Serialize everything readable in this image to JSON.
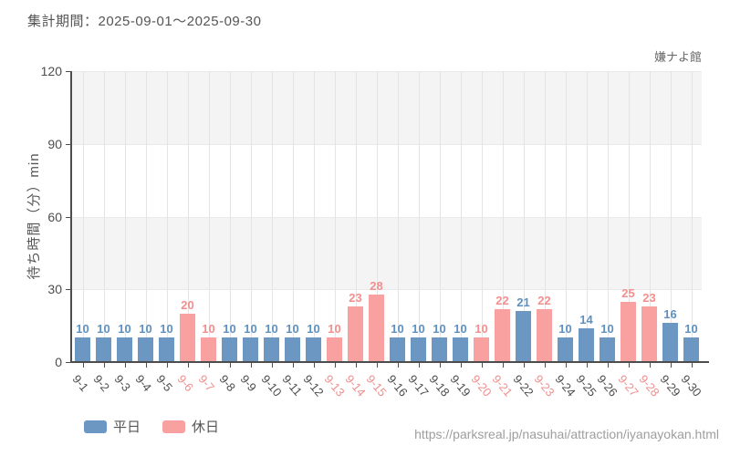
{
  "header": {
    "title": "集計期間：2025-09-01～2025-09-30"
  },
  "chart": {
    "venue_label": "嫌ナよ館"
  },
  "footer": {
    "url": "https://parksreal.jp/nasuhai/attraction/iyanayokan.html"
  },
  "colors": {
    "weekday_bar": "#6b97c2",
    "holiday_bar": "#f9a0a0",
    "weekday_value_label": "#5e90c0",
    "holiday_value_label": "#f48f8f",
    "weekday_axis_label": "#4d4d4d",
    "holiday_axis_label": "#f08e8e",
    "axis_line": "#4d4d4d",
    "band_fill": "#f4f4f4",
    "grid_line": "#e4e4e4",
    "hgrid_line": "#e9e9e9"
  },
  "legend": {
    "items": [
      {
        "key": "weekday",
        "label": "平日"
      },
      {
        "key": "holiday",
        "label": "休日"
      }
    ]
  },
  "chart_data": {
    "type": "bar",
    "title": "集計期間：2025-09-01～2025-09-30",
    "annotation_top_right": "嫌ナよ館",
    "xlabel": "",
    "ylabel": "待ち時間（分）min",
    "ylim": [
      0,
      120
    ],
    "yticks": [
      0,
      30,
      60,
      90,
      120
    ],
    "grid": "alternating horizontal bands + vertical lines at category centers",
    "legend_position": "bottom-left",
    "categories": [
      "9-1",
      "9-2",
      "9-3",
      "9-4",
      "9-5",
      "9-6",
      "9-7",
      "9-8",
      "9-9",
      "9-10",
      "9-11",
      "9-12",
      "9-13",
      "9-14",
      "9-15",
      "9-16",
      "9-17",
      "9-18",
      "9-19",
      "9-20",
      "9-21",
      "9-22",
      "9-23",
      "9-24",
      "9-25",
      "9-26",
      "9-27",
      "9-28",
      "9-29",
      "9-30"
    ],
    "values": [
      10,
      10,
      10,
      10,
      10,
      20,
      10,
      10,
      10,
      10,
      10,
      10,
      10,
      23,
      28,
      10,
      10,
      10,
      10,
      10,
      22,
      21,
      22,
      10,
      14,
      10,
      25,
      23,
      16,
      10
    ],
    "day_type": [
      "weekday",
      "weekday",
      "weekday",
      "weekday",
      "weekday",
      "holiday",
      "holiday",
      "weekday",
      "weekday",
      "weekday",
      "weekday",
      "weekday",
      "holiday",
      "holiday",
      "holiday",
      "weekday",
      "weekday",
      "weekday",
      "weekday",
      "holiday",
      "holiday",
      "weekday",
      "holiday",
      "weekday",
      "weekday",
      "weekday",
      "holiday",
      "holiday",
      "weekday",
      "weekday"
    ],
    "series": [
      {
        "name": "平日",
        "key": "weekday"
      },
      {
        "name": "休日",
        "key": "holiday"
      }
    ]
  }
}
